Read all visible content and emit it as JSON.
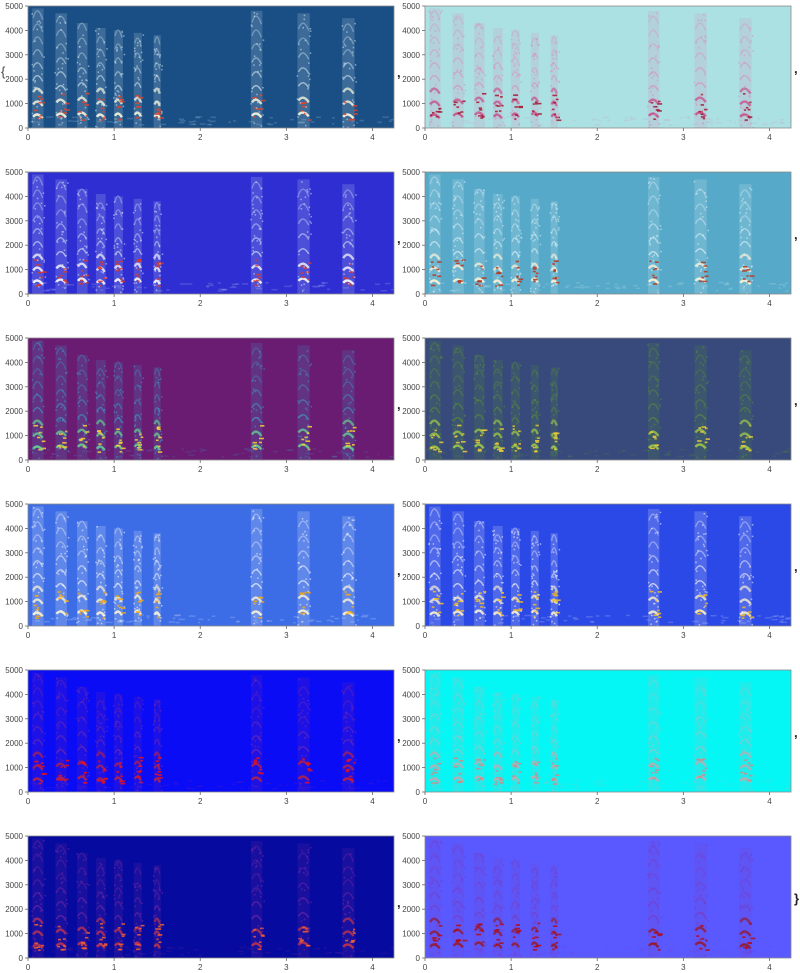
{
  "chart_data": {
    "type": "heatmap",
    "layout": {
      "rows": 6,
      "cols": 2
    },
    "title": "",
    "xlabel": "",
    "ylabel": "",
    "xlim": [
      0,
      4.25
    ],
    "ylim": [
      0,
      5000
    ],
    "xticks": [
      0,
      1,
      2,
      3,
      4
    ],
    "yticks": [
      0,
      1000,
      2000,
      3000,
      4000,
      5000
    ],
    "grid": false,
    "syllables": [
      {
        "t": 0.06,
        "w": 0.11,
        "top": 4900
      },
      {
        "t": 0.33,
        "w": 0.11,
        "top": 4700
      },
      {
        "t": 0.58,
        "w": 0.1,
        "top": 4300
      },
      {
        "t": 0.8,
        "w": 0.09,
        "top": 4100
      },
      {
        "t": 1.01,
        "w": 0.08,
        "top": 4000
      },
      {
        "t": 1.24,
        "w": 0.07,
        "top": 3900
      },
      {
        "t": 1.47,
        "w": 0.06,
        "top": 3800
      },
      {
        "t": 2.6,
        "w": 0.11,
        "top": 4800
      },
      {
        "t": 3.14,
        "w": 0.12,
        "top": 4700
      },
      {
        "t": 3.66,
        "w": 0.12,
        "top": 4500
      }
    ],
    "panels": [
      {
        "background": "#1a4f86",
        "harmonic": "#d8ecf5",
        "core": "#fffde0",
        "hot": "#e0442b"
      },
      {
        "background": "#abe1e3",
        "harmonic": "#d88ab8",
        "core": "#c7508a",
        "hot": "#a3152e"
      },
      {
        "background": "#2e2ed2",
        "harmonic": "#dce9fa",
        "core": "#ffffff",
        "hot": "#d8382a"
      },
      {
        "background": "#56a9c9",
        "harmonic": "#e3f6fb",
        "core": "#fff4d6",
        "hot": "#b9361b"
      },
      {
        "background": "#6a1b72",
        "harmonic": "#3fa0ce",
        "core": "#67d190",
        "hot": "#ffd234"
      },
      {
        "background": "#384a7c",
        "harmonic": "#5a8f39",
        "core": "#a1c94a",
        "hot": "#f2cc36"
      },
      {
        "background": "#3d6de6",
        "harmonic": "#ffffff",
        "core": "#fff6d2",
        "hot": "#f2a817"
      },
      {
        "background": "#2a49e6",
        "harmonic": "#ffffff",
        "core": "#fbf1cd",
        "hot": "#f7bd1b"
      },
      {
        "background": "#0a0cf5",
        "harmonic": "#7a2ea8",
        "core": "#b42347",
        "hot": "#f20f0f"
      },
      {
        "background": "#04f7f5",
        "harmonic": "#9dc3c6",
        "core": "#c3a9ad",
        "hot": "#d08a8a"
      },
      {
        "background": "#060a9e",
        "harmonic": "#7b2aa6",
        "core": "#c2354a",
        "hot": "#f5602e"
      },
      {
        "background": "#5959ff",
        "harmonic": "#7a3bc0",
        "core": "#961a2c",
        "hot": "#b40a12"
      }
    ],
    "separators": [
      ",",
      ",",
      ",",
      ",",
      ",",
      ",",
      ",",
      ",",
      ",",
      ",",
      ",",
      "}"
    ],
    "open_brace": "{"
  }
}
